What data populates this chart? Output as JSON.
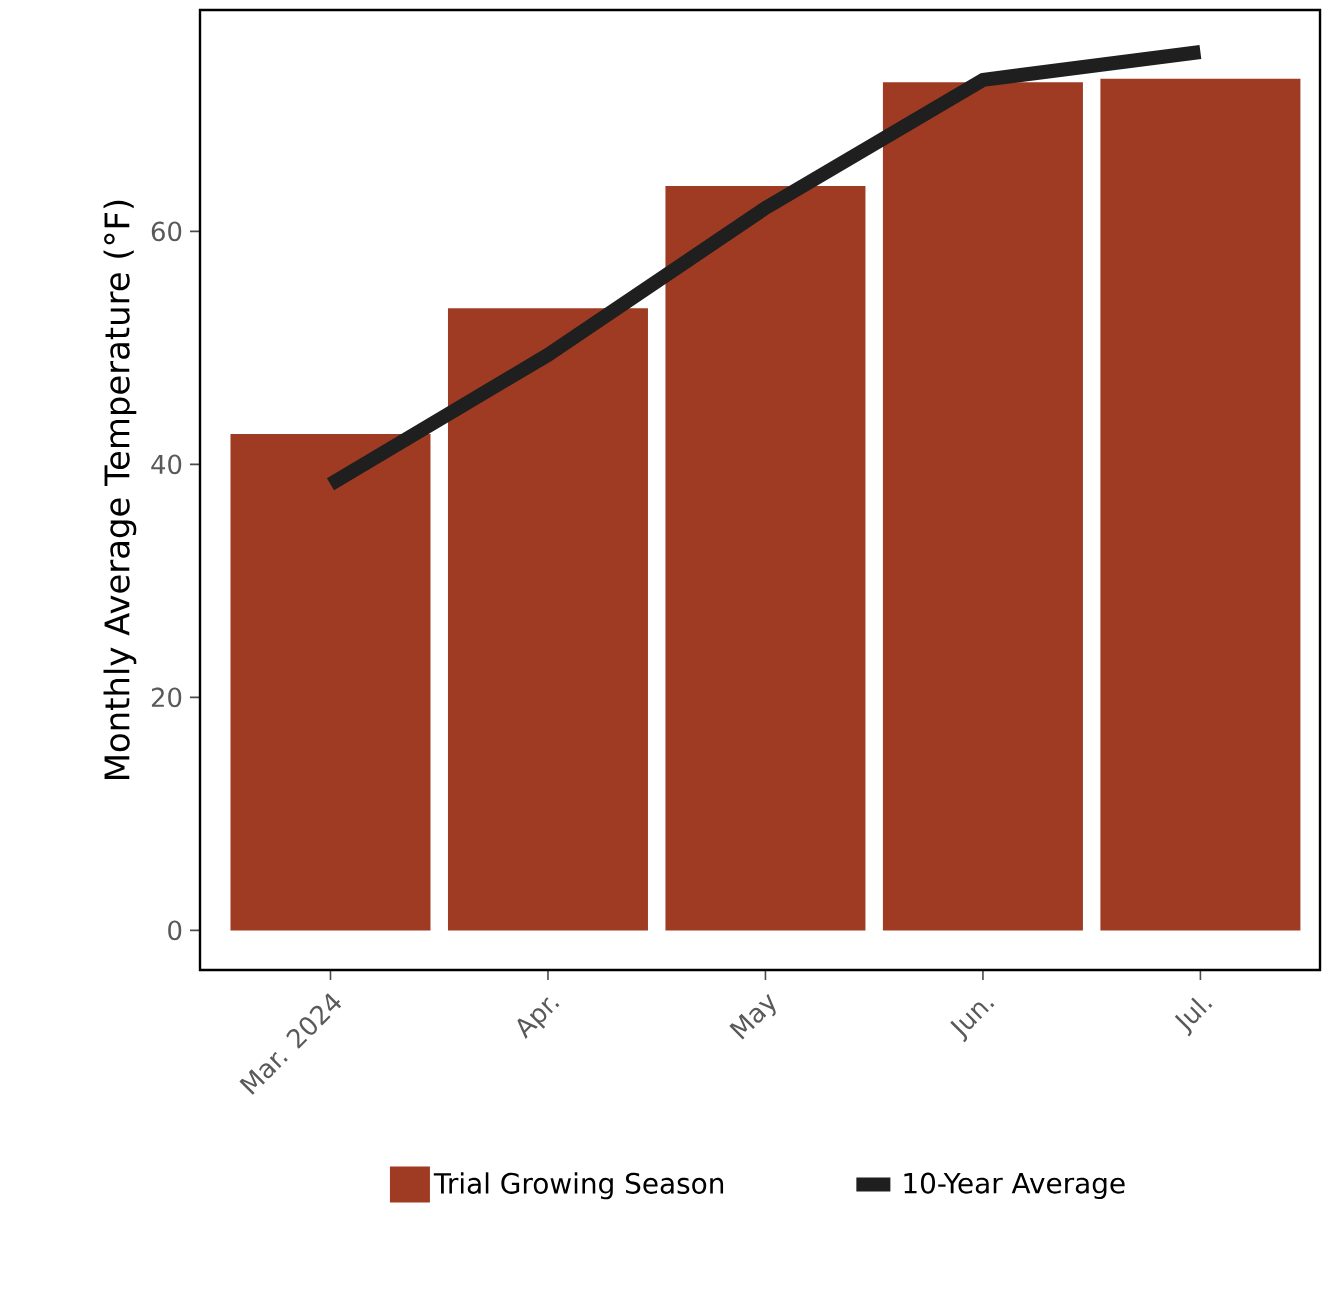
{
  "chart_data": {
    "type": "bar",
    "ylabel": "Monthly Average Temperature  (°F)",
    "categories": [
      "Mar. 2024",
      "Apr.",
      "May",
      "Jun.",
      "Jul."
    ],
    "series": [
      {
        "name": "Trial Growing Season",
        "color": "#9e3b22",
        "values": [
          42.6,
          53.4,
          63.9,
          72.8,
          73.1
        ]
      },
      {
        "name": "10-Year Average",
        "type": "line",
        "color": "#1f1f1f",
        "values": [
          38.3,
          49.4,
          62.0,
          73.0,
          75.4
        ]
      }
    ],
    "ylim": [
      -3.4,
      79
    ],
    "yticks": [
      0,
      20,
      40,
      60
    ],
    "grid": false,
    "legend": "bottom",
    "marker": "none",
    "line_style": "solid"
  }
}
